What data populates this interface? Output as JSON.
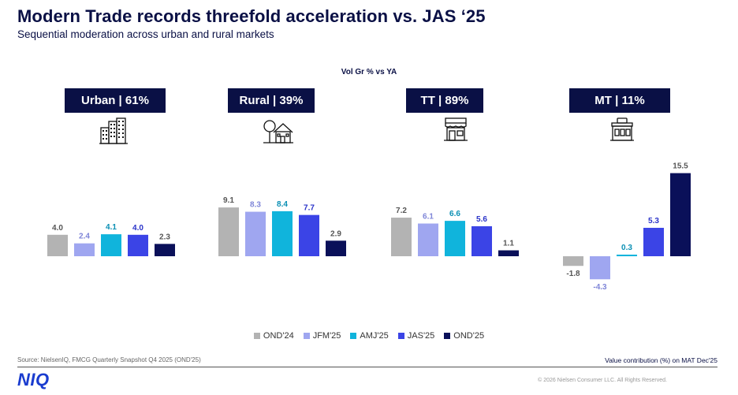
{
  "header": {
    "title": "Modern Trade records threefold acceleration vs. JAS ‘25",
    "subtitle": "Sequential moderation across urban and rural markets"
  },
  "chart_note": "Vol Gr % vs YA",
  "segments": [
    {
      "label": "Urban | 61%",
      "icon": "city-buildings-icon"
    },
    {
      "label": "Rural | 39%",
      "icon": "rural-house-icon"
    },
    {
      "label": "TT | 89%",
      "icon": "storefront-icon"
    },
    {
      "label": "MT | 11%",
      "icon": "supermarket-icon"
    }
  ],
  "chart_data": {
    "type": "bar",
    "categories": [
      "Urban",
      "Rural",
      "TT",
      "MT"
    ],
    "series": [
      {
        "name": "OND'24",
        "color": "#b3b3b3",
        "values": [
          4.0,
          9.1,
          7.2,
          -1.8
        ]
      },
      {
        "name": "JFM'25",
        "color": "#9fa6f0",
        "values": [
          2.4,
          8.3,
          6.1,
          -4.3
        ]
      },
      {
        "name": "AMJ'25",
        "color": "#10b4dc",
        "values": [
          4.1,
          8.4,
          6.6,
          0.3
        ]
      },
      {
        "name": "JAS'25",
        "color": "#3b44e6",
        "values": [
          4.0,
          7.7,
          5.6,
          5.3
        ]
      },
      {
        "name": "OND'25",
        "color": "#0a1059",
        "values": [
          2.3,
          2.9,
          1.1,
          15.5
        ]
      }
    ],
    "ylabel": "Vol Gr % vs YA",
    "grid": false,
    "legend": "bottom-center"
  },
  "footer": {
    "source": "Source: NielsenIQ, FMCG Quarterly Snapshot Q4 2025 (OND'25)",
    "value_contribution": "Value contribution (%) on MAT Dec'25",
    "logo": "NIQ",
    "copyright": "© 2026 Nielsen Consumer LLC. All Rights Reserved."
  }
}
